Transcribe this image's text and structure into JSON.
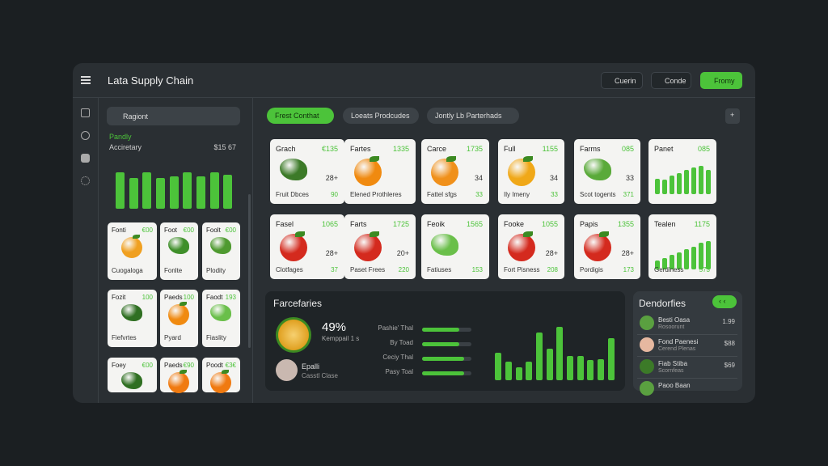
{
  "header": {
    "title": "Lata Supply Chain",
    "buttons": [
      "Cuerin",
      "Conde",
      "Fromy"
    ]
  },
  "sidebar": {
    "search": "Ragiont",
    "label": "Pandly",
    "name": "Acciretary",
    "amount": "$15 67",
    "bars": [
      45,
      38,
      45,
      38,
      40,
      45,
      40,
      45,
      42
    ],
    "ylim": [
      0,
      50
    ],
    "color": "#4cc33a"
  },
  "left_cards": [
    {
      "title": "Fonti",
      "value": "€00",
      "label": "Cuogaloga",
      "color": "#f0a020"
    },
    {
      "title": "Foot",
      "value": "€00",
      "label": "Fonlte",
      "color": "#3f8f2a"
    },
    {
      "title": "Foolt",
      "value": "€00",
      "label": "Plodity",
      "color": "#4f9a30"
    },
    {
      "title": "Fozit",
      "value": "100",
      "label": "Fiefvrtes",
      "color": "#2f6f22"
    },
    {
      "title": "Paeds",
      "value": "100",
      "label": "Pyard",
      "color": "#f08a10"
    },
    {
      "title": "Faodt",
      "value": "193",
      "label": "Fiaslity",
      "color": "#6abf4a"
    },
    {
      "title": "Foey",
      "value": "€00",
      "color": "#2f6f22"
    },
    {
      "title": "Paeds",
      "value": "€90",
      "color": "#f07a10"
    },
    {
      "title": "Poodt",
      "value": "€3€",
      "color": "#f07a10"
    }
  ],
  "tabs": [
    "Frest Conthat",
    "Loeats Prodcudes",
    "Jontly Lb Parterhads"
  ],
  "add_button": "+",
  "cards": [
    {
      "title": "Grach",
      "value": "€135",
      "mid": "28+",
      "label": "Fruit Dbces",
      "sub": "90",
      "color": "#3c7a28"
    },
    {
      "title": "Fartes",
      "value": "1335",
      "label": "Elened Prothleres",
      "color": "#f08a10"
    },
    {
      "title": "Carce",
      "value": "1735",
      "mid": "34",
      "label": "Fattel sfgs",
      "sub": "33",
      "color": "#f0901a"
    },
    {
      "title": "Full",
      "value": "1155",
      "mid": "34",
      "label": "Ily Imeny",
      "sub": "33",
      "color": "#f0a818"
    },
    {
      "title": "Farms",
      "value": "085",
      "mid": "33",
      "label": "Scot togents",
      "sub": "371",
      "color": "#5aaa3a"
    },
    {
      "title": "Panet",
      "value": "085",
      "bars": [
        22,
        20,
        26,
        30,
        34,
        38,
        40,
        34
      ],
      "ylim": [
        0,
        50
      ]
    },
    {
      "title": "Fasel",
      "value": "1065",
      "mid": "28+",
      "label": "Clotfages",
      "sub": "37",
      "color": "#d42a1e"
    },
    {
      "title": "Farts",
      "value": "1725",
      "mid": "20+",
      "label": "Paset Frees",
      "sub": "220",
      "color": "#d42a1e"
    },
    {
      "title": "Feoik",
      "value": "1565",
      "label": "Fatiuses",
      "sub": "153",
      "color": "#6abf4a"
    },
    {
      "title": "Fooke",
      "value": "1055",
      "mid": "28+",
      "label": "Fort Pisness",
      "sub": "208",
      "color": "#d42a1e"
    },
    {
      "title": "Papis",
      "value": "1355",
      "mid": "28+",
      "label": "Pordigis",
      "sub": "173",
      "color": "#d42a1e"
    },
    {
      "title": "Tealen",
      "value": "1175",
      "label": "Gerdiness",
      "sub": "573",
      "bars": [
        12,
        16,
        20,
        24,
        28,
        32,
        38,
        40
      ],
      "ylim": [
        0,
        50
      ]
    }
  ],
  "panel": {
    "title": "Farcefaries",
    "percent": "49%",
    "caption": "Kemppail 1 s",
    "person": "Epalli",
    "person_sub": "Casstl Clase",
    "progress": [
      {
        "label": "Pashie' Thal",
        "value": 75
      },
      {
        "label": "By Toad",
        "value": 75
      },
      {
        "label": "Ceciy Thal",
        "value": 85
      },
      {
        "label": "Pasy Toal",
        "value": 85
      }
    ],
    "xlim": [
      0,
      100
    ],
    "bars": [
      42,
      28,
      20,
      28,
      72,
      48,
      80,
      37,
      37,
      30,
      32,
      64
    ],
    "ylim": [
      0,
      100
    ],
    "color": "#4cc33a"
  },
  "list": {
    "title": "Dendorfies",
    "pill": "‹ ‹",
    "items": [
      {
        "name": "Besti Oasa",
        "sub": "Rosoorunt",
        "value": "1.99"
      },
      {
        "name": "Fond Paenesi",
        "sub": "Cerend Plenas",
        "value": "$88"
      },
      {
        "name": "Fiab Stiba",
        "sub": "Scornfeas",
        "value": "$69"
      },
      {
        "name": "Paoo Baan"
      }
    ]
  }
}
